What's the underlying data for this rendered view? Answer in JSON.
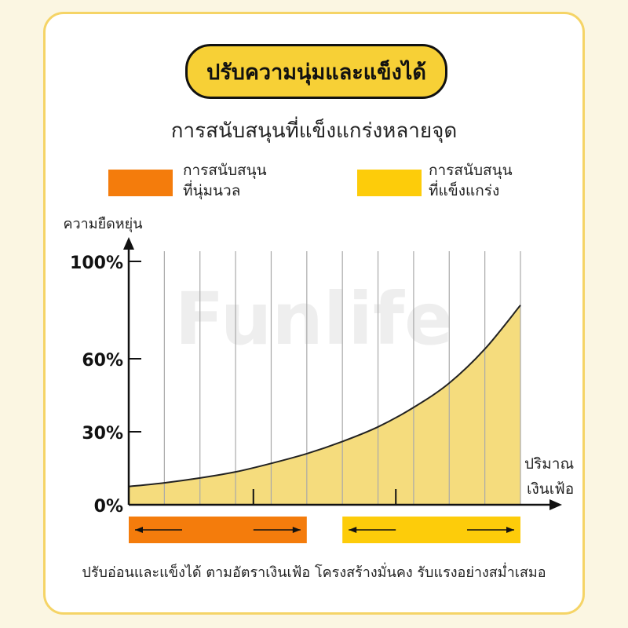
{
  "title": "ปรับความนุ่มและแข็งได้",
  "subtitle": "การสนับสนุนที่แข็งแกร่งหลายจุด",
  "legend": [
    {
      "line1": "การสนับสนุน",
      "line2": "ที่นุ่มนวล",
      "color": "#f47c0c"
    },
    {
      "line1": "การสนับสนุน",
      "line2": "ที่แข็งแกร่ง",
      "color": "#fdcc0a"
    }
  ],
  "watermark": "Funlife",
  "footer": "ปรับอ่อนและแข็งได้ ตามอัตราเงินเฟ้อ  โครงสร้างมั่นคง รับแรงอย่างสม่ำเสมอ",
  "colors": {
    "fill": "#f5dc7d",
    "curve": "#222222",
    "grid": "#a9a9a9",
    "bar_soft": "#f47c0c",
    "bar_firm": "#fdcc0a"
  },
  "chart_data": {
    "type": "area",
    "ylabel": "ความยืดหยุ่น",
    "xlabel_line1": "ปริมาณ",
    "xlabel_line2": "เงินเฟ้อ",
    "yticks": [
      {
        "value": 0,
        "label": "0%"
      },
      {
        "value": 30,
        "label": "30%"
      },
      {
        "value": 60,
        "label": "60%"
      },
      {
        "value": 100,
        "label": "100%"
      }
    ],
    "ylim": [
      0,
      100
    ],
    "xlim": [
      0,
      11
    ],
    "x": [
      0,
      1,
      2,
      3,
      4,
      5,
      6,
      7,
      8,
      9,
      10,
      11
    ],
    "y": [
      7.5,
      9,
      11,
      13.5,
      17,
      21,
      26,
      32,
      40,
      50,
      64,
      82
    ],
    "vertical_gridlines": [
      1,
      2,
      3,
      4,
      5,
      6,
      7,
      8,
      9,
      10,
      11
    ],
    "tick_marks": [
      3.5,
      7.5
    ],
    "grid": true,
    "ranges": [
      {
        "name": "soft",
        "start": 0,
        "end": 5,
        "color": "#f47c0c"
      },
      {
        "name": "firm",
        "start": 6,
        "end": 11,
        "color": "#fdcc0a"
      }
    ]
  }
}
